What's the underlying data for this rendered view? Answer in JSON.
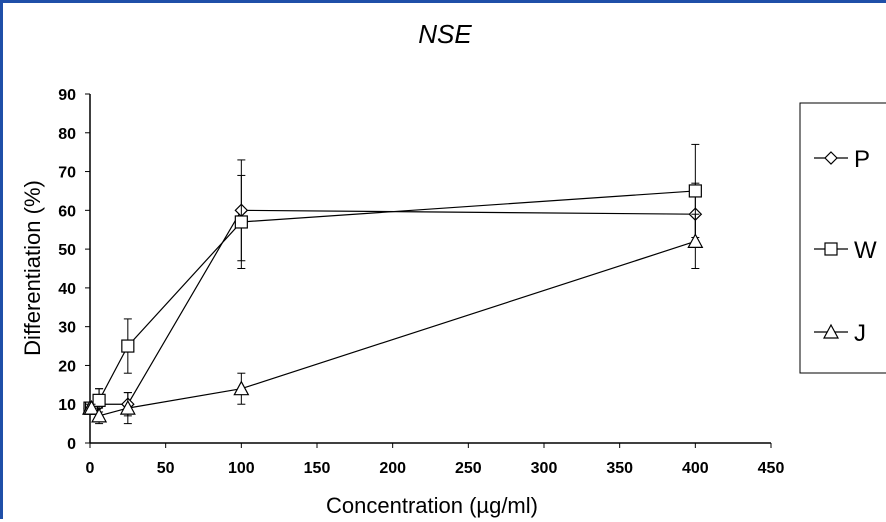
{
  "chart_data": {
    "type": "scatter",
    "title": "NSE",
    "xlabel": "Concentration (µg/ml)",
    "ylabel": "Differentiation (%)",
    "xlim": [
      0,
      450
    ],
    "ylim": [
      0,
      90
    ],
    "xticks": [
      "0",
      "50",
      "100",
      "150",
      "200",
      "250",
      "300",
      "350",
      "400",
      "450"
    ],
    "yticks": [
      "0",
      "10",
      "20",
      "30",
      "40",
      "50",
      "60",
      "70",
      "80",
      "90"
    ],
    "grid": false,
    "legend_position": "right",
    "series": [
      {
        "name": "P",
        "marker": "diamond",
        "x": [
          0,
          1,
          6,
          25,
          100,
          400
        ],
        "y": [
          9,
          9,
          10,
          10,
          60,
          59
        ],
        "err": [
          1,
          1,
          4,
          3,
          13,
          8
        ]
      },
      {
        "name": "W",
        "marker": "square",
        "x": [
          0,
          1,
          6,
          25,
          100,
          400
        ],
        "y": [
          9,
          9,
          11,
          25,
          57,
          65
        ],
        "err": [
          1,
          1,
          3,
          7,
          12,
          12
        ]
      },
      {
        "name": "J",
        "marker": "triangle",
        "x": [
          0,
          1,
          6,
          25,
          100,
          400
        ],
        "y": [
          9,
          9,
          7,
          9,
          14,
          52
        ],
        "err": [
          1,
          1,
          2,
          4,
          4,
          7
        ]
      }
    ]
  }
}
